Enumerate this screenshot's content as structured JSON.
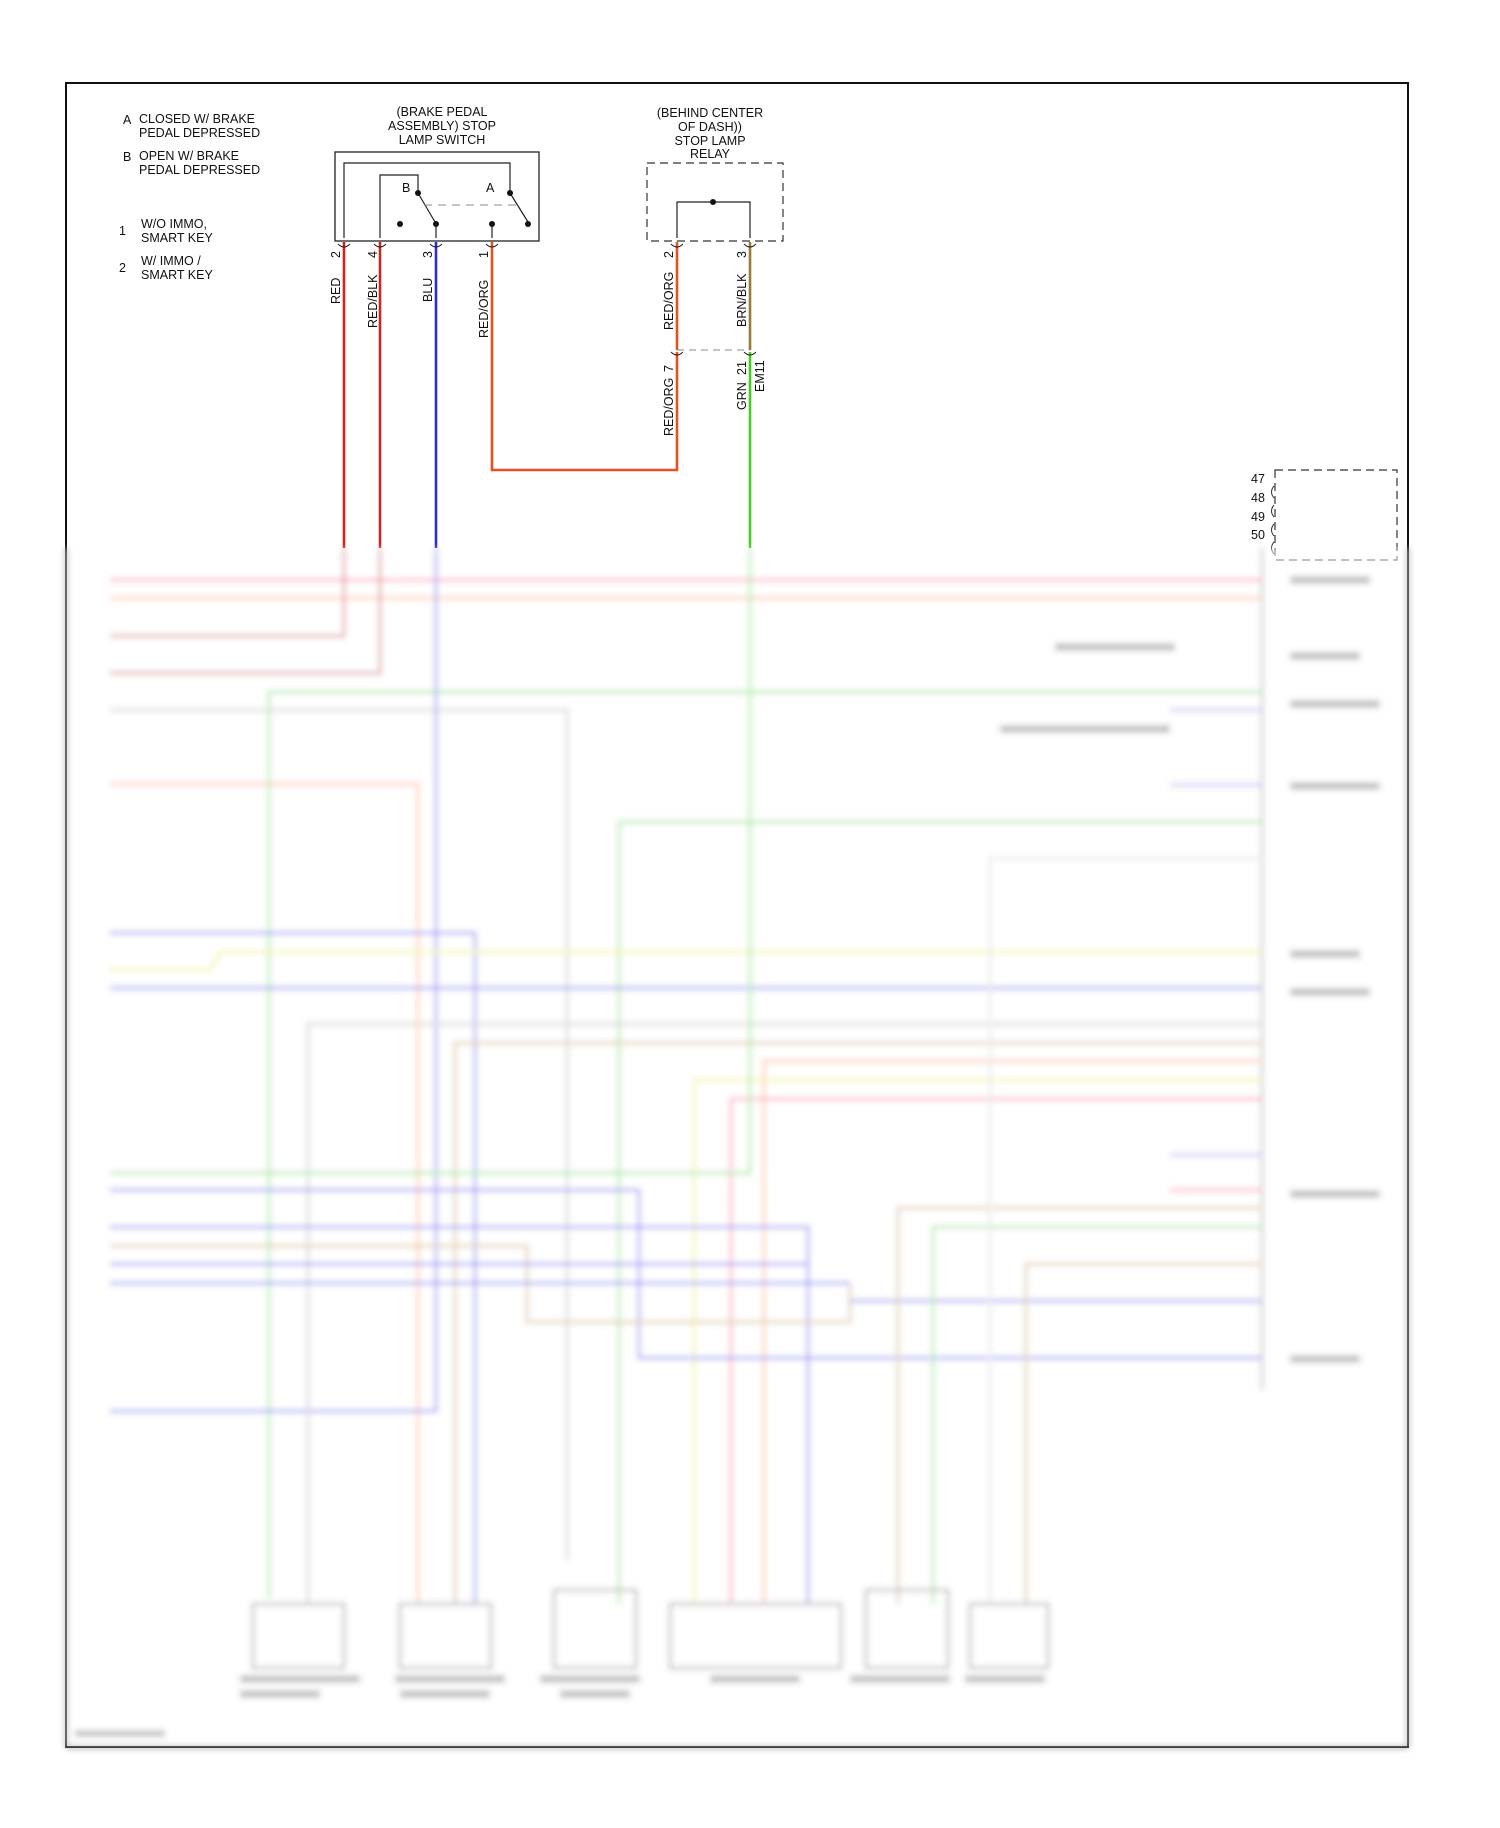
{
  "legend": {
    "switch_states": [
      {
        "key": "A",
        "line1": "CLOSED W/ BRAKE",
        "line2": "PEDAL DEPRESSED"
      },
      {
        "key": "B",
        "line1": "OPEN W/ BRAKE",
        "line2": "PEDAL DEPRESSED"
      }
    ],
    "variants": [
      {
        "key": "1",
        "line1": "W/O IMMO,",
        "line2": "SMART KEY"
      },
      {
        "key": "2",
        "line1": "W/ IMMO /",
        "line2": "SMART KEY"
      }
    ]
  },
  "stop_lamp_switch": {
    "title": [
      "(BRAKE PEDAL",
      "ASSEMBLY) STOP",
      "LAMP SWITCH"
    ],
    "contact_a": "A",
    "contact_b": "B",
    "pins": [
      {
        "pin": "2",
        "wire": "RED",
        "color": "#d42020"
      },
      {
        "pin": "4",
        "wire": "RED/BLK",
        "color": "#c62828"
      },
      {
        "pin": "3",
        "wire": "BLU",
        "color": "#2b2bd6"
      },
      {
        "pin": "1",
        "wire": "RED/ORG",
        "color": "#e8501e"
      }
    ]
  },
  "stop_lamp_relay": {
    "title": [
      "(BEHIND CENTER",
      "OF DASH))",
      "STOP LAMP",
      "RELAY"
    ],
    "pins": [
      {
        "pin": "2",
        "wire": "RED/ORG",
        "color": "#e8501e"
      },
      {
        "pin": "3",
        "wire": "BRN/BLK",
        "color": "#9a7a3a"
      }
    ]
  },
  "connector_em11": {
    "name": "EM11",
    "pins": [
      {
        "pin": "7",
        "wire": "RED/ORG",
        "color": "#e8501e"
      },
      {
        "pin": "21",
        "wire": "GRN",
        "color": "#44cc22"
      }
    ]
  },
  "module_connector": {
    "pins": [
      "47",
      "48",
      "49",
      "50"
    ]
  }
}
